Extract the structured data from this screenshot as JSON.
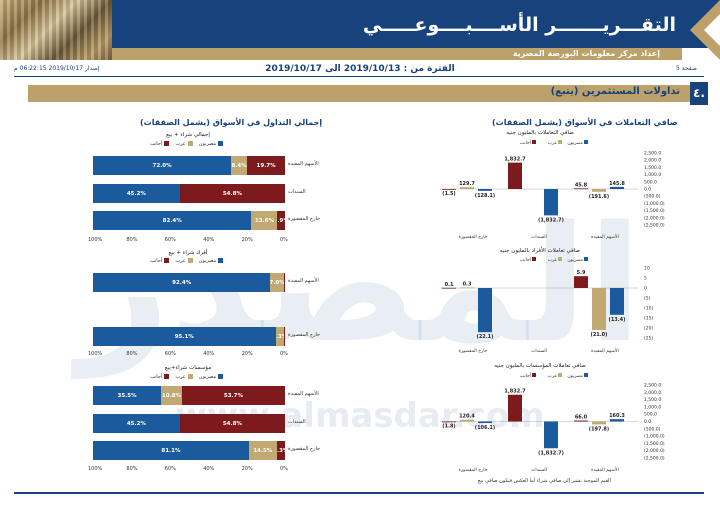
{
  "header": {
    "title": "التقـــريـــــــر الأســــبــــوعـــــي",
    "subtitle": "إعداد مركز معلومات البورصة المصرية",
    "page_label": "صفحة 5",
    "issue_label": "إصدار 2019/10/17 06:22:15 م",
    "period": "الفترة من : 2019/10/13 الى 2019/10/17"
  },
  "section": {
    "number": "٤.",
    "title": "تداولات المستثمرين  (يتبع)"
  },
  "left_column": {
    "title": "إجمالي التداول في الأسواق (يشمل الصفقات)",
    "charts": [
      {
        "title": "إجمالي شراء + بيع",
        "legend": [
          "مصريون",
          "عرب",
          "أجانب"
        ],
        "rows": [
          {
            "label": "الأسهم المقيدة",
            "values": [
              72.0,
              8.4,
              19.7
            ],
            "labels": [
              "72.0%",
              "8.4%",
              "19.7%"
            ]
          },
          {
            "label": "السندات",
            "values": [
              45.2,
              0,
              54.8
            ],
            "labels": [
              "45.2%",
              "",
              "54.8%"
            ]
          },
          {
            "label": "خارج المقصورة",
            "values": [
              82.4,
              13.6,
              3.9
            ],
            "labels": [
              "82.4%",
              "13.6%",
              "3.9%"
            ]
          }
        ],
        "ticks": [
          "0%",
          "20%",
          "40%",
          "60%",
          "80%",
          "100%"
        ]
      },
      {
        "title": "أفراد شراء + بيع",
        "legend": [
          "مصريون",
          "عرب",
          "أجانب"
        ],
        "rows": [
          {
            "label": "الأسهم المقيدة",
            "values": [
              92.4,
              7.0,
              0.6
            ],
            "labels": [
              "92.4%",
              "7.0%",
              ""
            ]
          },
          {
            "label": "خارج المقصورة",
            "values": [
              95.1,
              4.3,
              0.6
            ],
            "labels": [
              "95.1%",
              "4.3%",
              ""
            ]
          }
        ],
        "ticks": [
          "0%",
          "20%",
          "40%",
          "60%",
          "80%",
          "100%"
        ]
      },
      {
        "title": "مؤسسات شراء+بيع",
        "legend": [
          "مصريون",
          "عرب",
          "أجانب"
        ],
        "rows": [
          {
            "label": "الأسهم المقيدة",
            "values": [
              35.5,
              10.8,
              53.7
            ],
            "labels": [
              "35.5%",
              "10.8%",
              "53.7%"
            ]
          },
          {
            "label": "السندات",
            "values": [
              45.2,
              0,
              54.8
            ],
            "labels": [
              "45.2%",
              "",
              "54.8%"
            ]
          },
          {
            "label": "خارج المقصورة",
            "values": [
              81.1,
              14.5,
              4.3
            ],
            "labels": [
              "81.1%",
              "14.5%",
              "4.3%"
            ]
          }
        ],
        "ticks": [
          "0%",
          "20%",
          "40%",
          "60%",
          "80%",
          "100%"
        ]
      }
    ]
  },
  "right_column": {
    "title": "صافي التعاملات في الأسواق (يشمل الصفقات)",
    "charts": [
      {
        "title": "صافي التعاملات بالمليون جنيه",
        "legend": [
          "مصريون",
          "عرب",
          "أجانب"
        ],
        "ylim": [
          -2500,
          2500
        ],
        "ticks": [
          "2,500.0",
          "2,000.0",
          "1,500.0",
          "1,000.0",
          "500.0",
          "0.0",
          "(500.0)",
          "(1,000.0)",
          "(1,500.0)",
          "(2,000.0)",
          "(2,500.0)"
        ],
        "groups": [
          {
            "label": "الأسهم المقيدة",
            "values": [
              145.8,
              -191.6,
              45.8
            ],
            "labels": [
              "145.8",
              "(191.6)",
              "45.8"
            ]
          },
          {
            "label": "السندات",
            "values": [
              -1832.7,
              0,
              1832.7
            ],
            "labels": [
              "(1,832.7)",
              "",
              "1,832.7"
            ]
          },
          {
            "label": "خارج المقصورة",
            "values": [
              -128.1,
              129.7,
              -1.5
            ],
            "labels": [
              "(128.1)",
              "129.7",
              "(1.5)"
            ]
          }
        ]
      },
      {
        "title": "صافي تعاملات الأفراد بالمليون جنيه",
        "legend": [
          "مصريون",
          "عرب",
          "أجانب"
        ],
        "ylim": [
          -25,
          10
        ],
        "ticks": [
          "10",
          "5",
          "0",
          "(5)",
          "(10)",
          "(15)",
          "(20)",
          "(25)"
        ],
        "groups": [
          {
            "label": "الأسهم المقيدة",
            "values": [
              -13.4,
              -21.0,
              5.9
            ],
            "labels": [
              "(13.4)",
              "(21.0)",
              "5.9"
            ]
          },
          {
            "label": "السندات",
            "values": [
              0,
              0,
              0
            ],
            "labels": [
              "",
              "",
              ""
            ]
          },
          {
            "label": "خارج المقصورة",
            "values": [
              -22.1,
              0.3,
              0.1
            ],
            "labels": [
              "(22.1)",
              "0.3",
              "0.1"
            ]
          }
        ]
      },
      {
        "title": "صافي تعاملات المؤسسات بالمليون جنيه",
        "legend": [
          "مصريون",
          "عرب",
          "أجانب"
        ],
        "ylim": [
          -2500,
          2500
        ],
        "ticks": [
          "2,500.0",
          "2,000.0",
          "1,500.0",
          "1,000.0",
          "500.0",
          "0.0",
          "(500.0)",
          "(1,000.0)",
          "(1,500.0)",
          "(2,000.0)",
          "(2,500.0)"
        ],
        "groups": [
          {
            "label": "الأسهم المقيدة",
            "values": [
              160.3,
              -197.8,
              66.0
            ],
            "labels": [
              "160.3",
              "(197.8)",
              "66.0"
            ]
          },
          {
            "label": "السندات",
            "values": [
              -1832.7,
              0,
              1832.7
            ],
            "labels": [
              "(1,832.7)",
              "",
              "1,832.7"
            ]
          },
          {
            "label": "خارج المقصورة",
            "values": [
              -106.1,
              120.4,
              -1.8
            ],
            "labels": [
              "(106.1)",
              "120.4",
              "(1.8)"
            ]
          }
        ]
      }
    ],
    "footnote": "القيم الموجبة تشير إلى صافي شراء أما العكس فيكون صافي بيع"
  },
  "watermark": {
    "text": "المصدر",
    "url": "www.almasdar.com"
  },
  "colors": {
    "egyptians": "#1b5a9c",
    "arabs": "#c2a873",
    "foreigners": "#7d1a1e",
    "navy": "#17427c"
  }
}
